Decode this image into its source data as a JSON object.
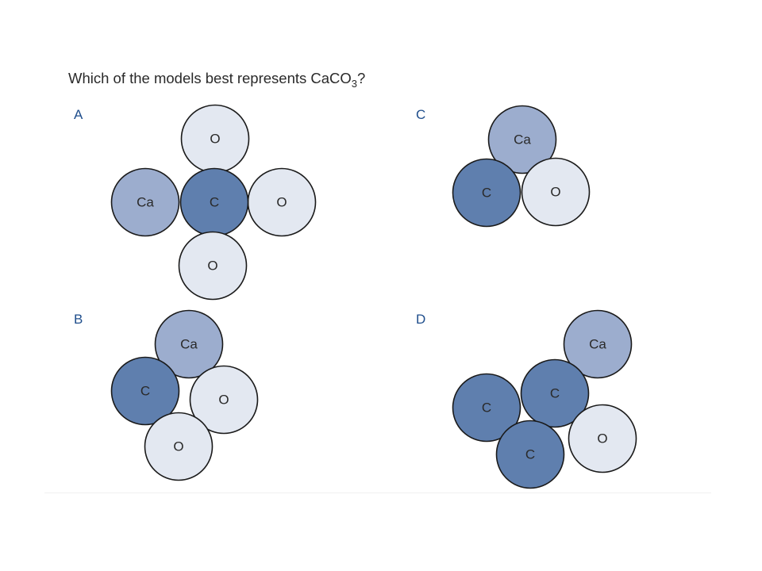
{
  "question": {
    "prefix": "Which of the models best represents CaCO",
    "subscript": "3",
    "suffix": "?"
  },
  "colors": {
    "calcium": "#9cadce",
    "carbon": "#5f7fae",
    "oxygen": "#e3e8f1",
    "outline": "#1a1a1a",
    "option_letter": "#1f4e8c"
  },
  "options": [
    {
      "letter": "A",
      "atoms": [
        {
          "label": "O",
          "element": "oxygen"
        },
        {
          "label": "Ca",
          "element": "calcium"
        },
        {
          "label": "O",
          "element": "oxygen"
        },
        {
          "label": "C",
          "element": "carbon"
        },
        {
          "label": "O",
          "element": "oxygen"
        }
      ]
    },
    {
      "letter": "B",
      "atoms": [
        {
          "label": "Ca",
          "element": "calcium"
        },
        {
          "label": "C",
          "element": "carbon"
        },
        {
          "label": "O",
          "element": "oxygen"
        },
        {
          "label": "O",
          "element": "oxygen"
        }
      ]
    },
    {
      "letter": "C",
      "atoms": [
        {
          "label": "Ca",
          "element": "calcium"
        },
        {
          "label": "C",
          "element": "carbon"
        },
        {
          "label": "O",
          "element": "oxygen"
        }
      ]
    },
    {
      "letter": "D",
      "atoms": [
        {
          "label": "Ca",
          "element": "calcium"
        },
        {
          "label": "C",
          "element": "carbon"
        },
        {
          "label": "O",
          "element": "oxygen"
        },
        {
          "label": "C",
          "element": "carbon"
        },
        {
          "label": "C",
          "element": "carbon"
        }
      ]
    }
  ]
}
